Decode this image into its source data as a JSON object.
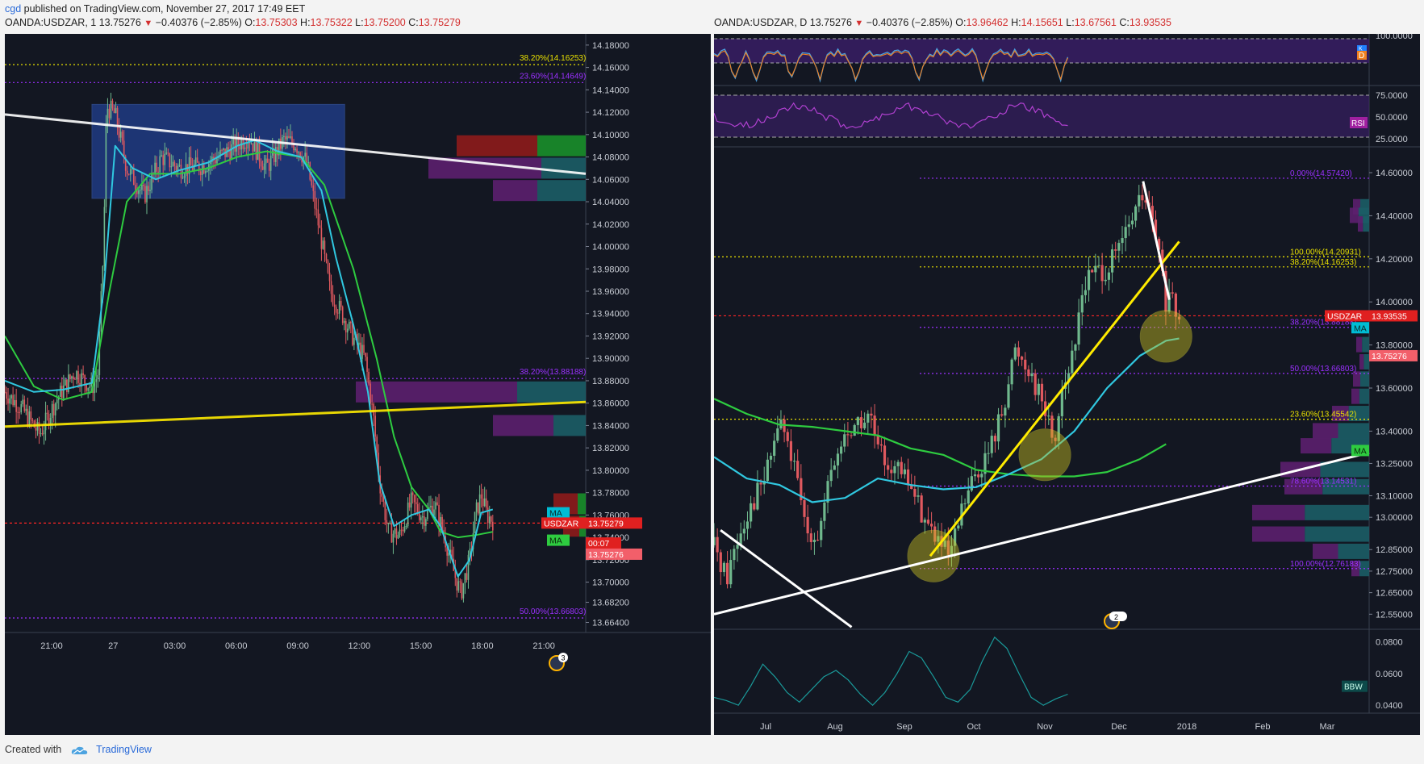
{
  "header": {
    "user": "cgd",
    "text": "published on TradingView.com, November 27, 2017 17:49 EET"
  },
  "footer": {
    "created_with": "Created with",
    "brand": "TradingView"
  },
  "left_pane": {
    "symbol": "OANDA:USDZAR, 1",
    "price": "13.75276",
    "change": "−0.40376 (−2.85%)",
    "o_label": "O:",
    "o": "13.75303",
    "h_label": "H:",
    "h": "13.75322",
    "l_label": "L:",
    "l": "13.75200",
    "c_label": "C:",
    "c": "13.75279"
  },
  "right_pane": {
    "symbol": "OANDA:USDZAR, D",
    "price": "13.75276",
    "change": "−0.40376 (−2.85%)",
    "o_label": "O:",
    "o": "13.96462",
    "h_label": "H:",
    "h": "14.15651",
    "l_label": "L:",
    "l": "13.67561",
    "c_label": "C:",
    "c": "13.93535"
  },
  "colors": {
    "bg": "#131722",
    "grid": "#242a38",
    "axis_text": "#c8ccd4",
    "up": "#6fb88d",
    "down": "#e0595f",
    "ma_cyan": "#30c8e0",
    "ma_green": "#2ecc40",
    "yellow": "#ffeb00",
    "white": "#ffffff",
    "purple_fib": "#9b30ff",
    "yellow_fib": "#e8e000",
    "red_price": "#ff2525",
    "vp_purple": "#5c1f6e",
    "vp_teal": "#1c5d66",
    "vp_green": "#1a8f2a",
    "vp_red": "#8e1b1b"
  },
  "chart_data": [
    {
      "type": "candlestick",
      "title": "OANDA:USDZAR, 1",
      "x_ticks": [
        "21:00",
        "27",
        "03:00",
        "06:00",
        "09:00",
        "12:00",
        "15:00",
        "18:00",
        "21:00"
      ],
      "y_ticks": [
        "14.18000",
        "14.16000",
        "14.14000",
        "14.12000",
        "14.10000",
        "14.08000",
        "14.06000",
        "14.04000",
        "14.02000",
        "14.00000",
        "13.98000",
        "13.96000",
        "13.94000",
        "13.92000",
        "13.90000",
        "13.88000",
        "13.86000",
        "13.84000",
        "13.82000",
        "13.80000",
        "13.78000",
        "13.76000",
        "13.74000",
        "13.72000",
        "13.70000",
        "13.68200",
        "13.66400"
      ],
      "ylim": [
        13.655,
        14.19
      ],
      "price_path": [
        [
          0,
          13.87
        ],
        [
          0.03,
          13.855
        ],
        [
          0.06,
          13.832
        ],
        [
          0.09,
          13.864
        ],
        [
          0.12,
          13.888
        ],
        [
          0.15,
          13.874
        ],
        [
          0.16,
          13.885
        ],
        [
          0.17,
          14.0
        ],
        [
          0.175,
          14.125
        ],
        [
          0.19,
          14.118
        ],
        [
          0.21,
          14.07
        ],
        [
          0.24,
          14.045
        ],
        [
          0.27,
          14.08
        ],
        [
          0.3,
          14.07
        ],
        [
          0.34,
          14.072
        ],
        [
          0.38,
          14.084
        ],
        [
          0.42,
          14.098
        ],
        [
          0.45,
          14.07
        ],
        [
          0.48,
          14.095
        ],
        [
          0.5,
          14.092
        ],
        [
          0.52,
          14.075
        ],
        [
          0.545,
          14.005
        ],
        [
          0.56,
          13.96
        ],
        [
          0.58,
          13.94
        ],
        [
          0.6,
          13.918
        ],
        [
          0.62,
          13.9
        ],
        [
          0.635,
          13.845
        ],
        [
          0.645,
          13.79
        ],
        [
          0.66,
          13.745
        ],
        [
          0.68,
          13.742
        ],
        [
          0.7,
          13.772
        ],
        [
          0.72,
          13.758
        ],
        [
          0.74,
          13.77
        ],
        [
          0.76,
          13.735
        ],
        [
          0.775,
          13.705
        ],
        [
          0.785,
          13.69
        ],
        [
          0.8,
          13.72
        ],
        [
          0.81,
          13.76
        ],
        [
          0.82,
          13.778
        ],
        [
          0.83,
          13.76
        ],
        [
          0.84,
          13.755
        ]
      ],
      "ma_cyan_path": [
        [
          0,
          13.88
        ],
        [
          0.05,
          13.87
        ],
        [
          0.1,
          13.872
        ],
        [
          0.15,
          13.878
        ],
        [
          0.17,
          13.96
        ],
        [
          0.19,
          14.09
        ],
        [
          0.22,
          14.07
        ],
        [
          0.26,
          14.06
        ],
        [
          0.3,
          14.068
        ],
        [
          0.35,
          14.075
        ],
        [
          0.4,
          14.09
        ],
        [
          0.43,
          14.095
        ],
        [
          0.47,
          14.085
        ],
        [
          0.51,
          14.08
        ],
        [
          0.545,
          14.05
        ],
        [
          0.57,
          13.99
        ],
        [
          0.6,
          13.93
        ],
        [
          0.625,
          13.87
        ],
        [
          0.645,
          13.79
        ],
        [
          0.67,
          13.75
        ],
        [
          0.7,
          13.76
        ],
        [
          0.73,
          13.765
        ],
        [
          0.75,
          13.75
        ],
        [
          0.78,
          13.705
        ],
        [
          0.8,
          13.72
        ],
        [
          0.82,
          13.762
        ],
        [
          0.84,
          13.765
        ]
      ],
      "ma_green_path": [
        [
          0,
          13.92
        ],
        [
          0.05,
          13.875
        ],
        [
          0.1,
          13.863
        ],
        [
          0.15,
          13.87
        ],
        [
          0.18,
          13.96
        ],
        [
          0.21,
          14.04
        ],
        [
          0.25,
          14.065
        ],
        [
          0.3,
          14.065
        ],
        [
          0.35,
          14.07
        ],
        [
          0.4,
          14.08
        ],
        [
          0.45,
          14.085
        ],
        [
          0.51,
          14.08
        ],
        [
          0.55,
          14.055
        ],
        [
          0.6,
          13.98
        ],
        [
          0.64,
          13.9
        ],
        [
          0.67,
          13.83
        ],
        [
          0.7,
          13.785
        ],
        [
          0.73,
          13.765
        ],
        [
          0.75,
          13.745
        ],
        [
          0.78,
          13.74
        ],
        [
          0.81,
          13.742
        ],
        [
          0.84,
          13.745
        ]
      ],
      "trendlines": [
        {
          "name": "white-trendline",
          "color": "white",
          "from": [
            0,
            14.118
          ],
          "to": [
            1,
            14.065
          ]
        },
        {
          "name": "yellow-trendline",
          "color": "yellow",
          "from": [
            0,
            13.839
          ],
          "to": [
            1,
            13.861
          ]
        }
      ],
      "consolidation_box": {
        "x0": 0.15,
        "x1": 0.585,
        "y0": 14.043,
        "y1": 14.127
      },
      "fib_lines": [
        {
          "level": 14.1625,
          "color": "yellow",
          "label": "38.20%(14.16253)"
        },
        {
          "level": 14.1465,
          "color": "purple",
          "label": "23.60%(14.14649)"
        },
        {
          "level": 13.882,
          "color": "purple",
          "label": "38.20%(13.88188)"
        },
        {
          "level": 13.668,
          "color": "purple",
          "label": "50.00%(13.66803)"
        }
      ],
      "current_price": {
        "symbol": "USDZAR",
        "value": "13.75279",
        "bid": "13.75276",
        "countdown": "00:07",
        "level": 13.7528
      },
      "ma_labels": [
        "MA",
        "MA"
      ],
      "event_badge": "3"
    },
    {
      "type": "candlestick",
      "title": "OANDA:USDZAR, D",
      "x_ticks": [
        "Jul",
        "Aug",
        "Sep",
        "Oct",
        "Nov",
        "Dec",
        "2018",
        "Feb",
        "Mar"
      ],
      "y_ticks": [
        "14.60000",
        "14.40000",
        "14.20000",
        "14.00000",
        "13.80000",
        "13.60000",
        "13.40000",
        "13.25000",
        "13.10000",
        "13.00000",
        "12.85000",
        "12.75000",
        "12.65000",
        "12.55000"
      ],
      "ylim": [
        12.48,
        14.72
      ],
      "price_path": [
        [
          0,
          12.87
        ],
        [
          0.02,
          12.72
        ],
        [
          0.03,
          12.85
        ],
        [
          0.05,
          13.02
        ],
        [
          0.08,
          13.2
        ],
        [
          0.1,
          13.46
        ],
        [
          0.12,
          13.26
        ],
        [
          0.14,
          12.95
        ],
        [
          0.16,
          12.92
        ],
        [
          0.18,
          13.22
        ],
        [
          0.2,
          13.38
        ],
        [
          0.22,
          13.44
        ],
        [
          0.24,
          13.45
        ],
        [
          0.25,
          13.3
        ],
        [
          0.27,
          13.25
        ],
        [
          0.3,
          13.15
        ],
        [
          0.32,
          13.0
        ],
        [
          0.34,
          12.9
        ],
        [
          0.36,
          12.8
        ],
        [
          0.38,
          13.05
        ],
        [
          0.4,
          13.2
        ],
        [
          0.42,
          13.3
        ],
        [
          0.44,
          13.5
        ],
        [
          0.46,
          13.78
        ],
        [
          0.48,
          13.7
        ],
        [
          0.5,
          13.55
        ],
        [
          0.52,
          13.35
        ],
        [
          0.53,
          13.6
        ],
        [
          0.55,
          13.75
        ],
        [
          0.56,
          14.05
        ],
        [
          0.58,
          14.15
        ],
        [
          0.6,
          14.15
        ],
        [
          0.62,
          14.25
        ],
        [
          0.64,
          14.4
        ],
        [
          0.655,
          14.5
        ],
        [
          0.67,
          14.35
        ],
        [
          0.68,
          14.2
        ],
        [
          0.69,
          13.99
        ],
        [
          0.7,
          13.99
        ],
        [
          0.71,
          13.9
        ]
      ],
      "ma_cyan_path": [
        [
          0,
          13.28
        ],
        [
          0.05,
          13.18
        ],
        [
          0.1,
          13.15
        ],
        [
          0.15,
          13.07
        ],
        [
          0.2,
          13.09
        ],
        [
          0.25,
          13.18
        ],
        [
          0.3,
          13.15
        ],
        [
          0.35,
          13.13
        ],
        [
          0.4,
          13.14
        ],
        [
          0.45,
          13.2
        ],
        [
          0.5,
          13.27
        ],
        [
          0.55,
          13.4
        ],
        [
          0.6,
          13.6
        ],
        [
          0.65,
          13.75
        ],
        [
          0.69,
          13.82
        ],
        [
          0.71,
          13.83
        ]
      ],
      "ma_green_path": [
        [
          0,
          13.55
        ],
        [
          0.05,
          13.48
        ],
        [
          0.1,
          13.43
        ],
        [
          0.15,
          13.42
        ],
        [
          0.2,
          13.4
        ],
        [
          0.25,
          13.38
        ],
        [
          0.3,
          13.32
        ],
        [
          0.35,
          13.29
        ],
        [
          0.4,
          13.22
        ],
        [
          0.45,
          13.2
        ],
        [
          0.5,
          13.19
        ],
        [
          0.55,
          13.19
        ],
        [
          0.6,
          13.21
        ],
        [
          0.65,
          13.27
        ],
        [
          0.69,
          13.34
        ]
      ],
      "trendlines": [
        {
          "name": "yellow-rising-trendline",
          "color": "yellow",
          "from": [
            0.33,
            12.82
          ],
          "to": [
            0.71,
            14.28
          ]
        },
        {
          "name": "white-rising-trendline",
          "color": "white",
          "from": [
            0,
            12.55
          ],
          "to": [
            1,
            13.3
          ]
        },
        {
          "name": "white-descending-trendline",
          "color": "white",
          "from": [
            0.01,
            12.94
          ],
          "to": [
            0.21,
            12.49
          ]
        },
        {
          "name": "white-top-trendline",
          "color": "white",
          "from": [
            0.655,
            14.56
          ],
          "to": [
            0.695,
            14.01
          ]
        }
      ],
      "circles": [
        [
          0.335,
          12.82
        ],
        [
          0.505,
          13.29
        ],
        [
          0.69,
          13.84
        ]
      ],
      "fib_lines": [
        {
          "level": 14.5742,
          "color": "purple",
          "label": "0.00%(14.57420)"
        },
        {
          "level": 14.2093,
          "color": "yellow",
          "label": "100.00%(14.20931)"
        },
        {
          "level": 14.1625,
          "color": "yellow",
          "label": "38.20%(14.16253)"
        },
        {
          "level": 13.8819,
          "color": "purple",
          "label": "38.20%(13.88188)"
        },
        {
          "level": 13.668,
          "color": "purple",
          "label": "50.00%(13.66803)"
        },
        {
          "level": 13.4554,
          "color": "yellow",
          "label": "23.60%(13.45542)"
        },
        {
          "level": 13.145,
          "color": "purple",
          "label": "78.60%(13.14531)"
        },
        {
          "level": 12.7618,
          "color": "purple",
          "label": "100.00%(12.76183)"
        }
      ],
      "current_price": {
        "symbol": "USDZAR",
        "value": "13.93535",
        "bid": "13.75276",
        "level": 13.9354
      },
      "ma_labels": [
        "MA",
        "MA"
      ],
      "stoch": {
        "y_ticks": [
          "100.0000"
        ],
        "label_k": "K",
        "label_d": "D"
      },
      "rsi": {
        "label": "RSI",
        "y_ticks": [
          "75.0000",
          "50.0000",
          "25.0000"
        ]
      },
      "bbw": {
        "label": "BBW",
        "y_ticks": [
          "0.0800",
          "0.0600",
          "0.0400"
        ],
        "values": [
          0.045,
          0.043,
          0.04,
          0.052,
          0.066,
          0.058,
          0.048,
          0.042,
          0.05,
          0.058,
          0.062,
          0.056,
          0.047,
          0.04,
          0.048,
          0.06,
          0.074,
          0.07,
          0.058,
          0.045,
          0.042,
          0.05,
          0.068,
          0.083,
          0.076,
          0.06,
          0.045,
          0.04,
          0.044,
          0.047
        ]
      },
      "event_badge": "2"
    }
  ]
}
